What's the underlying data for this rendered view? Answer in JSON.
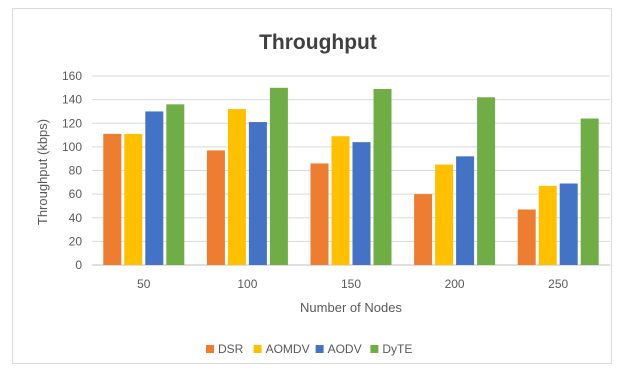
{
  "chart_data": {
    "type": "bar",
    "title": "Throughput",
    "xlabel": "Number of Nodes",
    "ylabel": "Throughput (kbps)",
    "categories": [
      "50",
      "100",
      "150",
      "200",
      "250"
    ],
    "ylim": [
      0,
      160
    ],
    "yticks": [
      0,
      20,
      40,
      60,
      80,
      100,
      120,
      140,
      160
    ],
    "grid": true,
    "legend_position": "bottom",
    "series": [
      {
        "name": "DSR",
        "color": "#ED7D31",
        "values": [
          111,
          97,
          86,
          60,
          47
        ]
      },
      {
        "name": "AOMDV",
        "color": "#FFC000",
        "values": [
          111,
          132,
          109,
          85,
          67
        ]
      },
      {
        "name": "AODV",
        "color": "#4472C4",
        "values": [
          130,
          121,
          104,
          92,
          69
        ]
      },
      {
        "name": "DyTE",
        "color": "#70AD47",
        "values": [
          136,
          150,
          149,
          142,
          124
        ]
      }
    ]
  }
}
